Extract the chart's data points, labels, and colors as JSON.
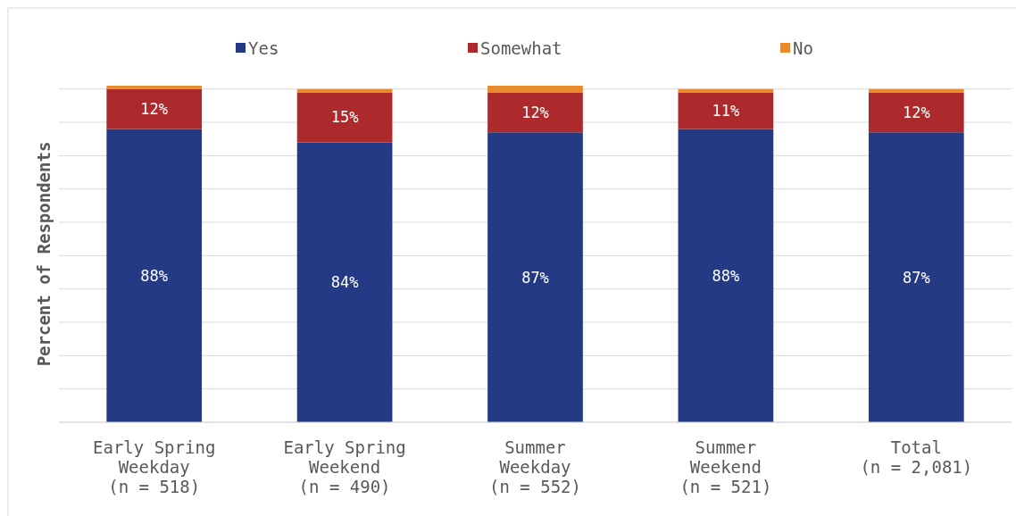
{
  "chart_data": {
    "type": "bar",
    "stacked": true,
    "ylabel": "Percent of Respondents",
    "categories": [
      "Early Spring\nWeekday\n(n = 518)",
      "Early Spring\nWeekend\n(n = 490)",
      "Summer\nWeekday\n(n = 552)",
      "Summer\nWeekend\n(n = 521)",
      "Total\n(n = 2,081)"
    ],
    "series": [
      {
        "name": "Yes",
        "color": "#253a85",
        "values": [
          88,
          84,
          87,
          88,
          87
        ],
        "value_labels": [
          "88%",
          "84%",
          "87%",
          "88%",
          "87%"
        ]
      },
      {
        "name": "Somewhat",
        "color": "#ac2a2c",
        "values": [
          12,
          15,
          12,
          11,
          12
        ],
        "value_labels": [
          "12%",
          "15%",
          "12%",
          "11%",
          "12%"
        ]
      },
      {
        "name": "No",
        "color": "#e98a2e",
        "values": [
          1,
          1,
          2,
          1,
          1
        ]
      }
    ],
    "ylim": [
      0,
      101
    ],
    "yticks": [
      {
        "value": 0,
        "label": null
      },
      {
        "value": 10,
        "label": null
      },
      {
        "value": 20,
        "label": null
      },
      {
        "value": 30,
        "label": null
      },
      {
        "value": 40,
        "label": null
      },
      {
        "value": 50,
        "label": null
      },
      {
        "value": 60,
        "label": null
      },
      {
        "value": 70,
        "label": null
      },
      {
        "value": 80,
        "label": null
      },
      {
        "value": 90,
        "label": null
      },
      {
        "value": 100,
        "label": null
      }
    ],
    "tick_labels": "x",
    "grid": "y",
    "legend": "top"
  }
}
